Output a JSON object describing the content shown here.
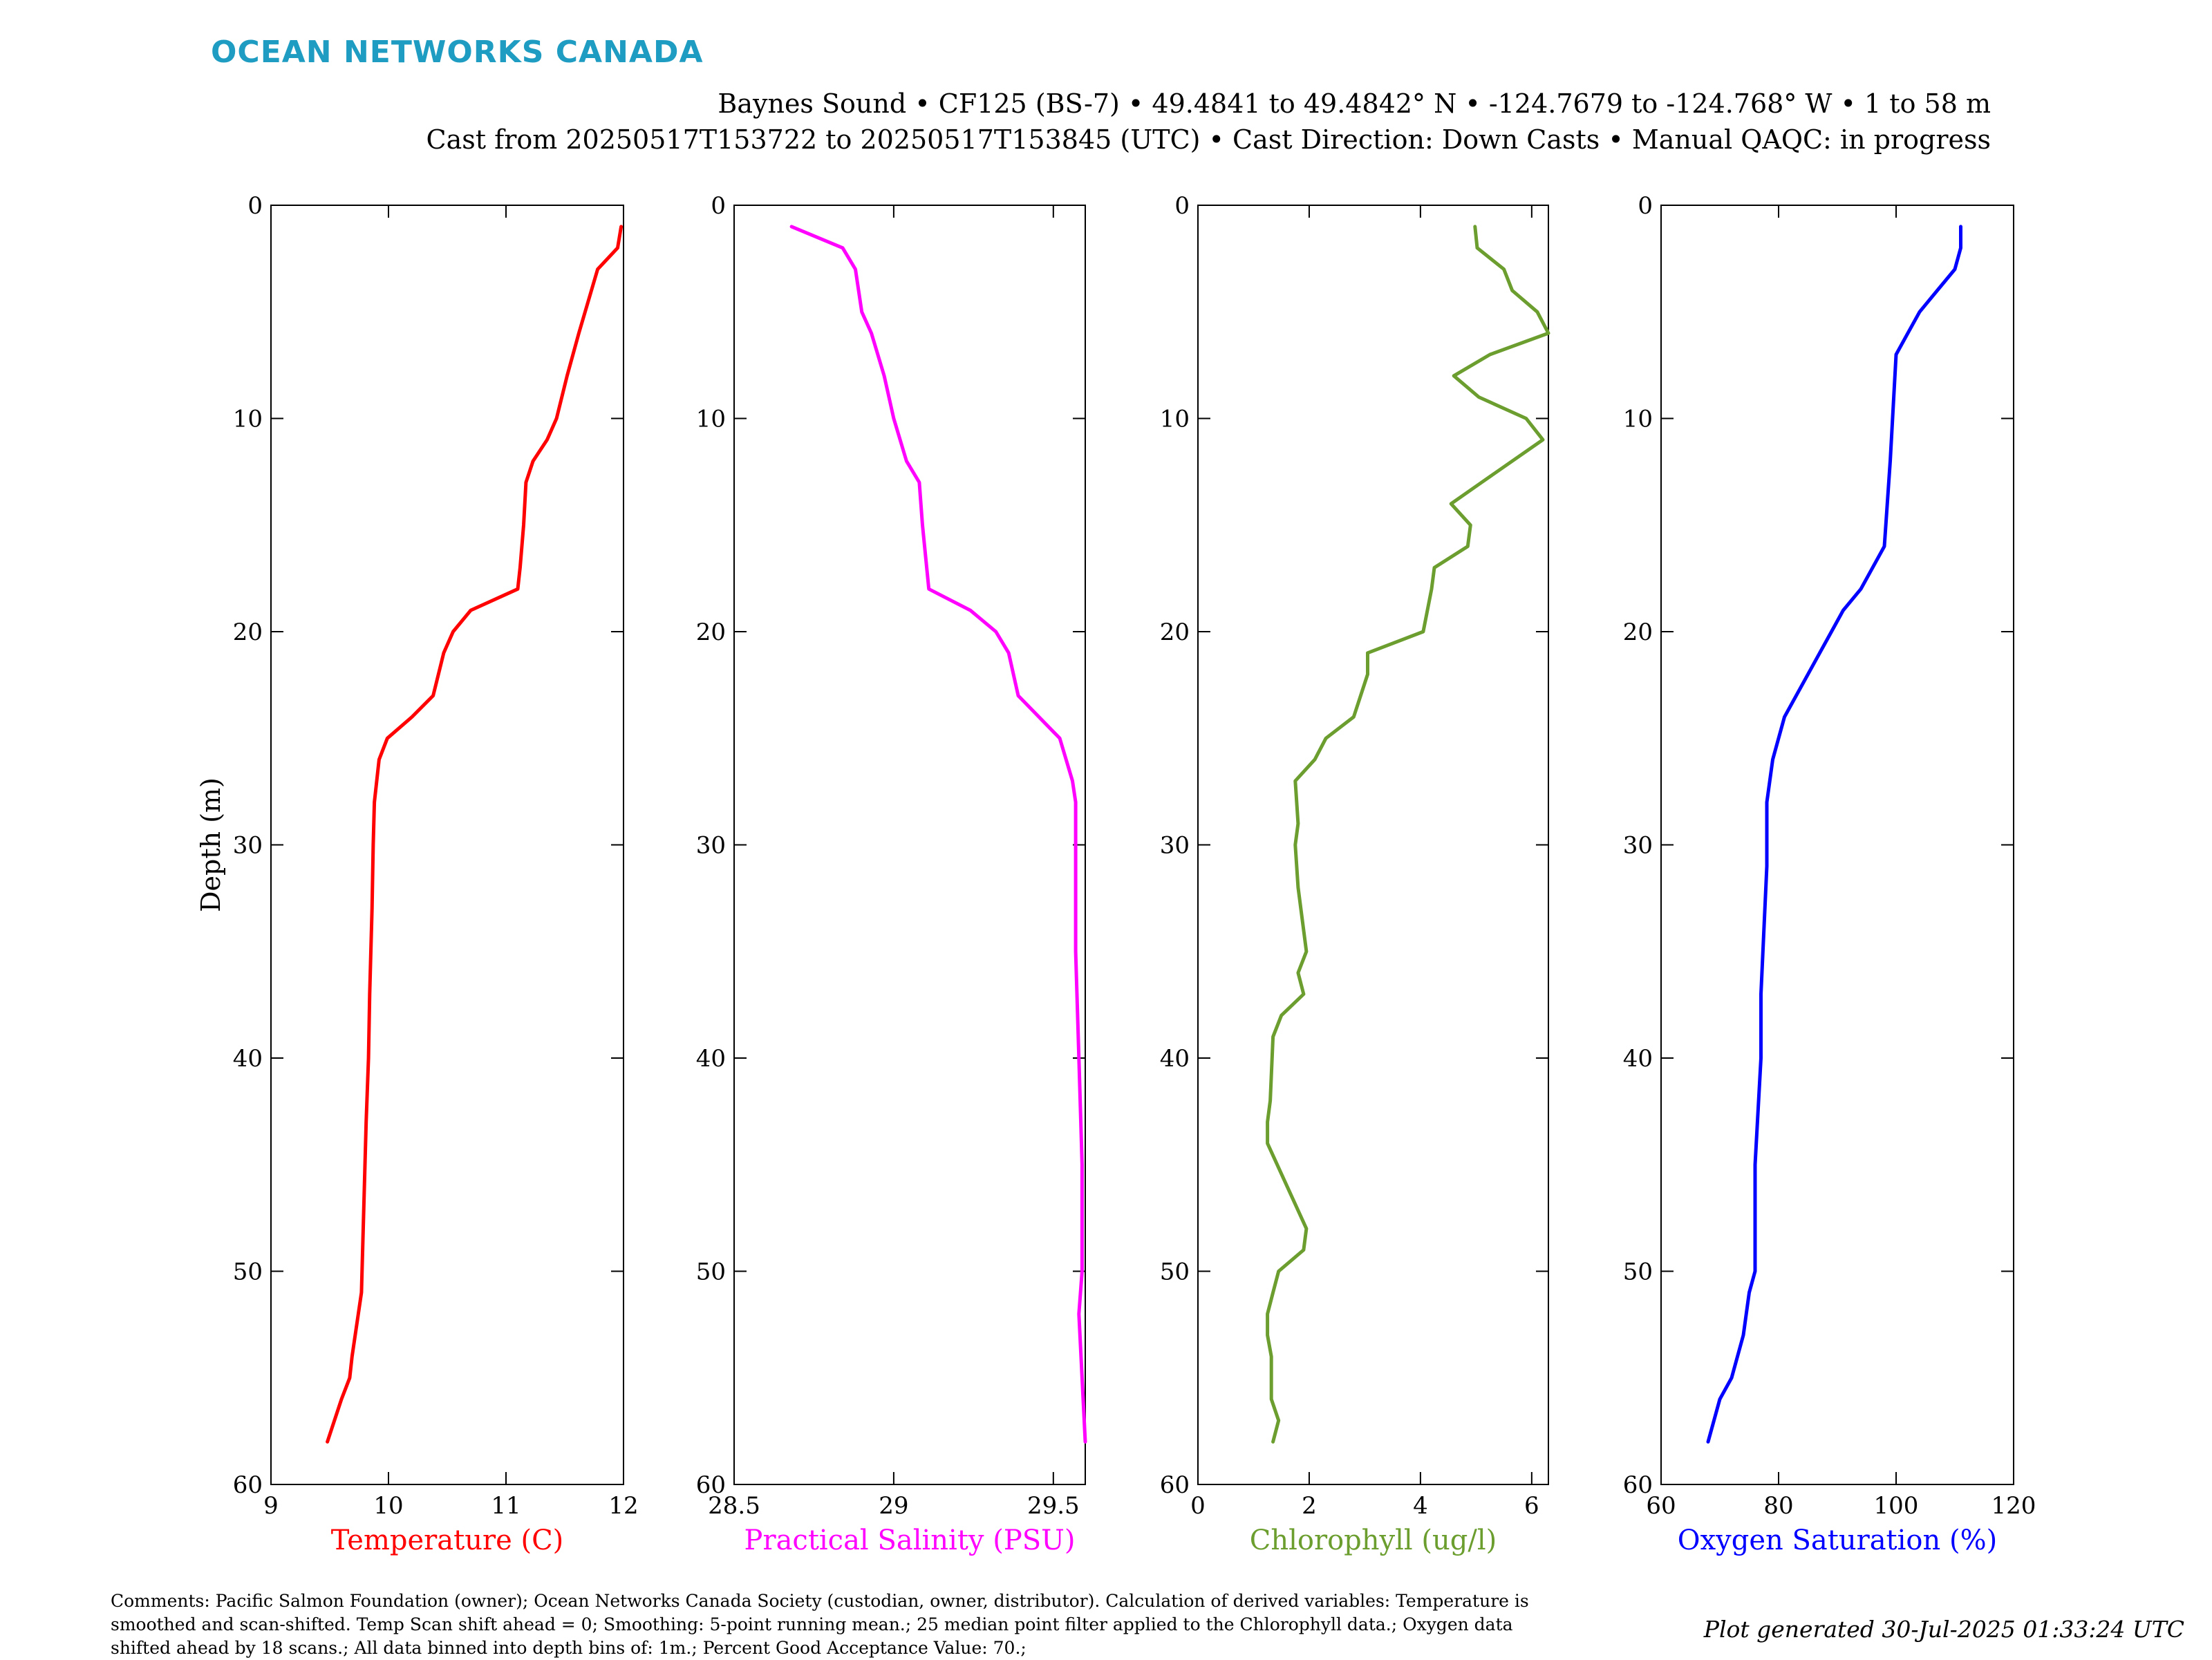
{
  "brand": "OCEAN NETWORKS CANADA",
  "header": {
    "line1": "Baynes Sound • CF125 (BS-7) • 49.4841 to 49.4842° N • -124.7679 to -124.768° W • 1 to 58 m",
    "line2": "Cast from 20250517T153722 to 20250517T153845 (UTC) • Cast Direction: Down Casts • Manual QAQC: in progress"
  },
  "comments": "Comments: Pacific Salmon Foundation (owner); Ocean Networks Canada Society (custodian, owner, distributor). Calculation of derived variables: Temperature is smoothed and scan-shifted. Temp Scan shift ahead = 0; Smoothing: 5-point running mean.; 25 median point filter applied to the Chlorophyll data.; Oxygen data shifted ahead by 18 scans.; All data binned into depth bins of: 1m.; Percent Good Acceptance Value: 70.;",
  "generated": "Plot generated 30-Jul-2025 01:33:24 UTC",
  "chart_data": [
    {
      "type": "line",
      "xlabel": "Temperature (C)",
      "ylabel": "Depth (m)",
      "xlim": [
        9,
        12
      ],
      "ylim": [
        0,
        60
      ],
      "y_inverted": true,
      "xticks": [
        "9",
        "10",
        "11",
        "12"
      ],
      "yticks": [
        "0",
        "10",
        "20",
        "30",
        "40",
        "50",
        "60"
      ],
      "color": "#ff0000",
      "x": [
        11.98,
        11.95,
        11.78,
        11.62,
        11.52,
        11.43,
        11.35,
        11.23,
        11.17,
        11.15,
        11.12,
        11.1,
        10.7,
        10.55,
        10.47,
        10.38,
        10.2,
        9.99,
        9.92,
        9.88,
        9.87,
        9.86,
        9.84,
        9.83,
        9.81,
        9.79,
        9.77,
        9.69,
        9.67,
        9.6,
        9.48
      ],
      "y": [
        1,
        2,
        3,
        6,
        8,
        10,
        11,
        12,
        13,
        15,
        17,
        18,
        19,
        20,
        21,
        23,
        24,
        25,
        26,
        28,
        30,
        33,
        37,
        40,
        43,
        47,
        51,
        54,
        55,
        56,
        58
      ]
    },
    {
      "type": "line",
      "xlabel": "Practical Salinity (PSU)",
      "ylabel": "",
      "xlim": [
        28.5,
        29.6
      ],
      "ylim": [
        0,
        60
      ],
      "y_inverted": true,
      "xticks": [
        "28.5",
        "29",
        "29.5"
      ],
      "yticks": [
        "0",
        "10",
        "20",
        "30",
        "40",
        "50",
        "60"
      ],
      "color": "#ff00ff",
      "x": [
        28.68,
        28.84,
        28.88,
        28.9,
        28.93,
        28.97,
        29.0,
        29.04,
        29.08,
        29.09,
        29.11,
        29.24,
        29.32,
        29.36,
        29.39,
        29.52,
        29.56,
        29.57,
        29.57,
        29.57,
        29.58,
        29.59,
        29.59,
        29.58,
        29.59,
        29.6
      ],
      "y": [
        1,
        2,
        3,
        5,
        6,
        8,
        10,
        12,
        13,
        15,
        18,
        19,
        20,
        21,
        23,
        25,
        27,
        28,
        31,
        35,
        40,
        45,
        50,
        52,
        55,
        58
      ]
    },
    {
      "type": "line",
      "xlabel": "Chlorophyll (ug/l)",
      "ylabel": "",
      "xlim": [
        0,
        6.3
      ],
      "ylim": [
        0,
        60
      ],
      "y_inverted": true,
      "xticks": [
        "0",
        "2",
        "4",
        "6"
      ],
      "yticks": [
        "0",
        "10",
        "20",
        "30",
        "40",
        "50",
        "60"
      ],
      "color": "#6b9e2e",
      "x": [
        4.98,
        5.02,
        5.5,
        5.65,
        6.1,
        6.3,
        5.25,
        4.6,
        5.05,
        5.9,
        6.2,
        5.1,
        4.55,
        4.9,
        4.85,
        4.25,
        4.2,
        4.05,
        3.05,
        3.05,
        2.8,
        2.3,
        2.1,
        1.75,
        1.8,
        1.75,
        1.8,
        1.95,
        1.8,
        1.9,
        1.5,
        1.35,
        1.3,
        1.25,
        1.25,
        1.95,
        1.9,
        1.45,
        1.35,
        1.25,
        1.25,
        1.32,
        1.32,
        1.45,
        1.35
      ],
      "y": [
        1,
        2,
        3,
        4,
        5,
        6,
        7,
        8,
        9,
        10,
        11,
        13,
        14,
        15,
        16,
        17,
        18,
        20,
        21,
        22,
        24,
        25,
        26,
        27,
        29,
        30,
        32,
        35,
        36,
        37,
        38,
        39,
        42,
        43,
        44,
        48,
        49,
        50,
        51,
        52,
        53,
        54,
        56,
        57,
        58
      ]
    },
    {
      "type": "line",
      "xlabel": "Oxygen Saturation (%)",
      "ylabel": "",
      "xlim": [
        60,
        120
      ],
      "ylim": [
        0,
        60
      ],
      "y_inverted": true,
      "xticks": [
        "60",
        "80",
        "100",
        "120"
      ],
      "yticks": [
        "0",
        "10",
        "20",
        "30",
        "40",
        "50",
        "60"
      ],
      "color": "#0000ff",
      "x": [
        111,
        111,
        110,
        107,
        104,
        102,
        100,
        99,
        98,
        96,
        94,
        91,
        89,
        87,
        85,
        81,
        79,
        78,
        78,
        77,
        77,
        76,
        76,
        75,
        74,
        72,
        70,
        68
      ],
      "y": [
        1,
        2,
        3,
        4,
        5,
        6,
        7,
        12,
        16,
        17,
        18,
        19,
        20,
        21,
        22,
        24,
        26,
        28,
        31,
        37,
        40,
        45,
        50,
        51,
        53,
        55,
        56,
        58
      ]
    }
  ]
}
